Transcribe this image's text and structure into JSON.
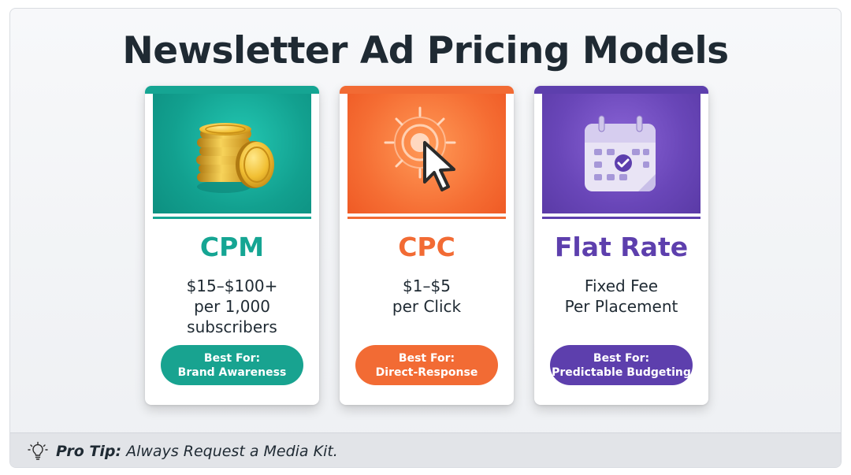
{
  "title": "Newsletter Ad Pricing Models",
  "cards": [
    {
      "name": "CPM",
      "lines": [
        "$15–$100+",
        "per 1,000",
        "subscribers"
      ],
      "best_for_label": "Best For:",
      "best_for": "Brand Awareness",
      "icon": "gold-coins-icon",
      "color": "#15a593"
    },
    {
      "name": "CPC",
      "lines": [
        "$1–$5",
        "per Click"
      ],
      "best_for_label": "Best For:",
      "best_for": "Direct-Response",
      "icon": "cursor-click-icon",
      "color": "#f26b34"
    },
    {
      "name": "Flat Rate",
      "lines": [
        "Fixed Fee",
        "Per Placement"
      ],
      "best_for_label": "Best For:",
      "best_for": "Predictable Budgeting",
      "icon": "calendar-check-icon",
      "color": "#5d3fad"
    }
  ],
  "tip": {
    "icon": "lightbulb-icon",
    "label": "Pro Tip:",
    "text": "Always Request a Media Kit."
  }
}
